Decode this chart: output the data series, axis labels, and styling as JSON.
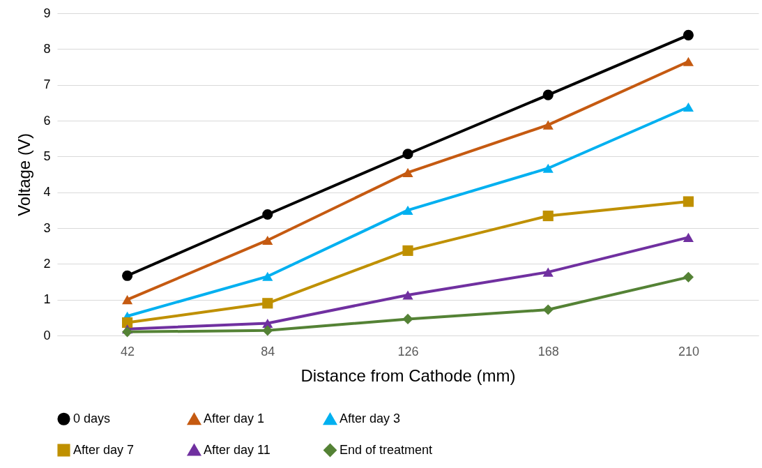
{
  "chart_data": {
    "type": "line",
    "xlabel": "Distance from Cathode (mm)",
    "ylabel": "Voltage (V)",
    "categories": [
      "42",
      "84",
      "126",
      "168",
      "210"
    ],
    "ylim": [
      0,
      9
    ],
    "yticks": [
      0,
      1,
      2,
      3,
      4,
      5,
      6,
      7,
      8,
      9
    ],
    "grid": "y",
    "legend": "bottom",
    "line_style": "solid",
    "series": [
      {
        "name": "0 days",
        "color": "#000000",
        "marker": "circle",
        "values": [
          1.67,
          3.38,
          5.07,
          6.72,
          8.39
        ]
      },
      {
        "name": "After day 1",
        "color": "#c55a11",
        "marker": "triangle",
        "values": [
          1.0,
          2.66,
          4.55,
          5.88,
          7.65
        ]
      },
      {
        "name": "After day 3",
        "color": "#00b0f0",
        "marker": "triangle",
        "values": [
          0.54,
          1.65,
          3.5,
          4.67,
          6.38
        ]
      },
      {
        "name": "After day 7",
        "color": "#bf9000",
        "marker": "square",
        "values": [
          0.36,
          0.9,
          2.37,
          3.34,
          3.74
        ]
      },
      {
        "name": "After day 11",
        "color": "#7030a0",
        "marker": "triangle",
        "values": [
          0.18,
          0.34,
          1.13,
          1.77,
          2.74
        ]
      },
      {
        "name": "End of treatment",
        "color": "#548235",
        "marker": "diamond",
        "values": [
          0.1,
          0.14,
          0.46,
          0.72,
          1.63
        ]
      }
    ]
  }
}
